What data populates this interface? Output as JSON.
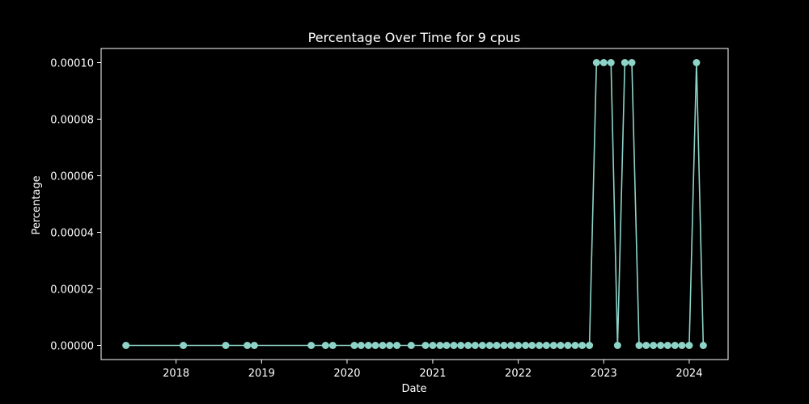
{
  "chart_data": {
    "type": "line",
    "title": "Percentage Over Time for 9 cpus",
    "xlabel": "Date",
    "ylabel": "Percentage",
    "xlim": [
      "2017-02-15",
      "2024-06-15"
    ],
    "ylim": [
      -5e-06,
      0.000105
    ],
    "x_ticks": [
      "2018",
      "2019",
      "2020",
      "2021",
      "2022",
      "2023",
      "2024"
    ],
    "y_ticks": [
      "0.00000",
      "0.00002",
      "0.00004",
      "0.00006",
      "0.00008",
      "0.00010"
    ],
    "grid": false,
    "background_color": "#000000",
    "foreground_color": "#ffffff",
    "series": [
      {
        "color": "#8dd3c7",
        "marker": "circle",
        "x": [
          "2017-06-01",
          "2018-02-01",
          "2018-08-01",
          "2018-11-01",
          "2018-12-01",
          "2019-08-01",
          "2019-10-01",
          "2019-11-01",
          "2020-02-01",
          "2020-03-01",
          "2020-04-01",
          "2020-05-01",
          "2020-06-01",
          "2020-07-01",
          "2020-08-01",
          "2020-10-01",
          "2020-12-01",
          "2021-01-01",
          "2021-02-01",
          "2021-03-01",
          "2021-04-01",
          "2021-05-01",
          "2021-06-01",
          "2021-07-01",
          "2021-08-01",
          "2021-09-01",
          "2021-10-01",
          "2021-11-01",
          "2021-12-01",
          "2022-01-01",
          "2022-02-01",
          "2022-03-01",
          "2022-04-01",
          "2022-05-01",
          "2022-06-01",
          "2022-07-01",
          "2022-08-01",
          "2022-09-01",
          "2022-10-01",
          "2022-11-01",
          "2022-12-01",
          "2023-01-01",
          "2023-02-01",
          "2023-03-01",
          "2023-04-01",
          "2023-05-01",
          "2023-06-01",
          "2023-07-01",
          "2023-08-01",
          "2023-09-01",
          "2023-10-01",
          "2023-11-01",
          "2023-12-01",
          "2024-01-01",
          "2024-02-01",
          "2024-03-01"
        ],
        "y": [
          0,
          0,
          0,
          0,
          0,
          0,
          0,
          0,
          0,
          0,
          0,
          0,
          0,
          0,
          0,
          0,
          0,
          0,
          0,
          0,
          0,
          0,
          0,
          0,
          0,
          0,
          0,
          0,
          0,
          0,
          0,
          0,
          0,
          0,
          0,
          0,
          0,
          0,
          0,
          0,
          0.0001,
          0.0001,
          0.0001,
          0,
          0.0001,
          0.0001,
          0,
          0,
          0,
          0,
          0,
          0,
          0,
          0,
          0.0001,
          0
        ]
      }
    ]
  }
}
